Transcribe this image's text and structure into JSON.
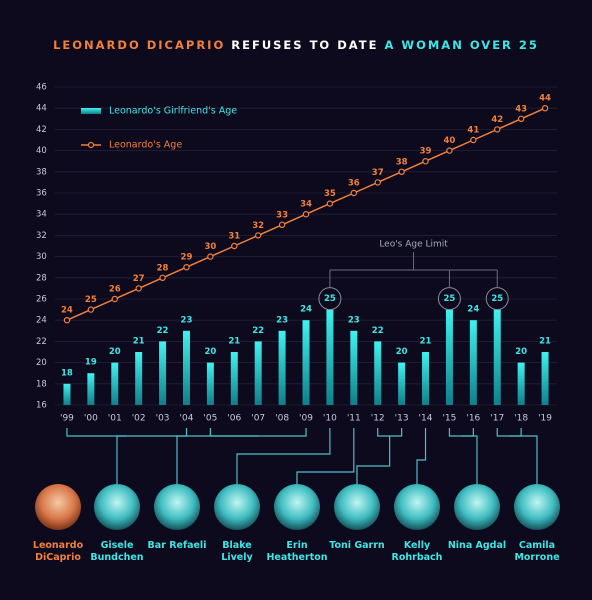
{
  "chart_data": {
    "type": "bar_line",
    "title_parts": [
      "LEONARDO DICAPRIO",
      "REFUSES TO DATE",
      "A WOMAN OVER 25"
    ],
    "categories": [
      "'99",
      "'00",
      "'01",
      "'02",
      "'03",
      "'04",
      "'05",
      "'06",
      "'07",
      "'08",
      "'09",
      "'10",
      "'11",
      "'12",
      "'13",
      "'14",
      "'15",
      "'16",
      "'17",
      "'18",
      "'19"
    ],
    "series": [
      {
        "name": "Leonardo's Girlfriend's Age",
        "type": "bar",
        "color": "#2fe0e0",
        "values": [
          18,
          19,
          20,
          21,
          22,
          23,
          20,
          21,
          22,
          23,
          24,
          25,
          23,
          22,
          20,
          21,
          25,
          24,
          25,
          20,
          21
        ]
      },
      {
        "name": "Leonardo's Age",
        "type": "line",
        "color": "#f2803a",
        "values": [
          24,
          25,
          26,
          27,
          28,
          29,
          30,
          31,
          32,
          33,
          34,
          35,
          36,
          37,
          38,
          39,
          40,
          41,
          42,
          43,
          44
        ]
      }
    ],
    "ylim": [
      16,
      46
    ],
    "yticks": [
      16,
      18,
      20,
      22,
      24,
      26,
      28,
      30,
      32,
      34,
      36,
      38,
      40,
      42,
      44,
      46
    ],
    "grid": true,
    "annotation": "Leo's Age Limit",
    "people": [
      "Leonardo DiCaprio",
      "Gisele Bundchen",
      "Bar Refaeli",
      "Blake Lively",
      "Erin Heatherton",
      "Toni Garrn",
      "Kelly Rohrbach",
      "Nina Agdal",
      "Camila Morrone"
    ]
  }
}
